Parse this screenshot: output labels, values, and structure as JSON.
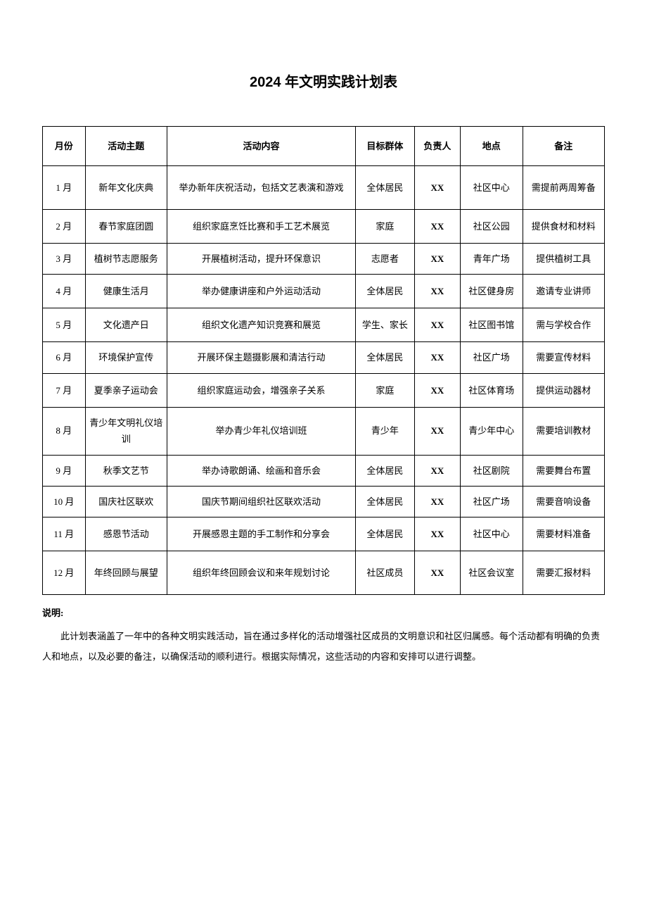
{
  "title": "2024 年文明实践计划表",
  "table": {
    "columns": [
      "月份",
      "活动主题",
      "活动内容",
      "目标群体",
      "负责人",
      "地点",
      "备注"
    ],
    "rows": [
      {
        "month": "1 月",
        "theme": "新年文化庆典",
        "content": "举办新年庆祝活动，包括文艺表演和游戏",
        "target": "全体居民",
        "person": "XX",
        "location": "社区中心",
        "notes": "需提前两周筹备",
        "height": "tall"
      },
      {
        "month": "2 月",
        "theme": "春节家庭团圆",
        "content": "组织家庭烹饪比赛和手工艺术展览",
        "target": "家庭",
        "person": "XX",
        "location": "社区公园",
        "notes": "提供食材和材料",
        "height": "med"
      },
      {
        "month": "3 月",
        "theme": "植树节志愿服务",
        "content": "开展植树活动，提升环保意识",
        "target": "志愿者",
        "person": "XX",
        "location": "青年广场",
        "notes": "提供植树工具",
        "height": "short"
      },
      {
        "month": "4 月",
        "theme": "健康生活月",
        "content": "举办健康讲座和户外运动活动",
        "target": "全体居民",
        "person": "XX",
        "location": "社区健身房",
        "notes": "邀请专业讲师",
        "height": "med"
      },
      {
        "month": "5 月",
        "theme": "文化遗产日",
        "content": "组织文化遗产知识竞赛和展览",
        "target": "学生、家长",
        "person": "XX",
        "location": "社区图书馆",
        "notes": "需与学校合作",
        "height": "med"
      },
      {
        "month": "6 月",
        "theme": "环境保护宣传",
        "content": "开展环保主题摄影展和清洁行动",
        "target": "全体居民",
        "person": "XX",
        "location": "社区广场",
        "notes": "需要宣传材料",
        "height": "short"
      },
      {
        "month": "7 月",
        "theme": "夏季亲子运动会",
        "content": "组织家庭运动会，增强亲子关系",
        "target": "家庭",
        "person": "XX",
        "location": "社区体育场",
        "notes": "提供运动器材",
        "height": "med"
      },
      {
        "month": "8 月",
        "theme": "青少年文明礼仪培训",
        "content": "举办青少年礼仪培训班",
        "target": "青少年",
        "person": "XX",
        "location": "青少年中心",
        "notes": "需要培训教材",
        "height": "tall"
      },
      {
        "month": "9 月",
        "theme": "秋季文艺节",
        "content": "举办诗歌朗诵、绘画和音乐会",
        "target": "全体居民",
        "person": "XX",
        "location": "社区剧院",
        "notes": "需要舞台布置",
        "height": "short"
      },
      {
        "month": "10 月",
        "theme": "国庆社区联欢",
        "content": "国庆节期间组织社区联欢活动",
        "target": "全体居民",
        "person": "XX",
        "location": "社区广场",
        "notes": "需要音响设备",
        "height": "short"
      },
      {
        "month": "11 月",
        "theme": "感恩节活动",
        "content": "开展感恩主题的手工制作和分享会",
        "target": "全体居民",
        "person": "XX",
        "location": "社区中心",
        "notes": "需要材料准备",
        "height": "med"
      },
      {
        "month": "12 月",
        "theme": "年终回顾与展望",
        "content": "组织年终回顾会议和来年规划讨论",
        "target": "社区成员",
        "person": "XX",
        "location": "社区会议室",
        "notes": "需要汇报材料",
        "height": "tall"
      }
    ]
  },
  "notes": {
    "label": "说明:",
    "body": "此计划表涵盖了一年中的各种文明实践活动，旨在通过多样化的活动增强社区成员的文明意识和社区归属感。每个活动都有明确的负责人和地点，以及必要的备注，以确保活动的顺利进行。根据实际情况，这些活动的内容和安排可以进行调整。"
  }
}
